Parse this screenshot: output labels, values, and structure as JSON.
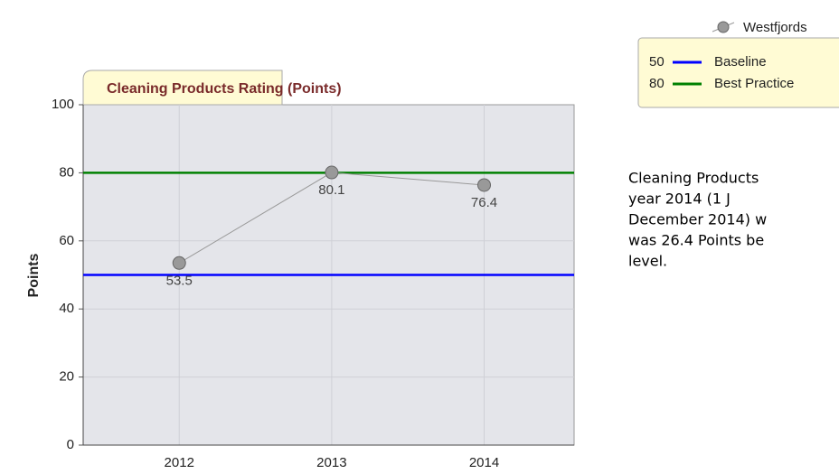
{
  "chart_data": {
    "type": "line",
    "title": "Cleaning Products Rating (Points)",
    "y_label": "Points",
    "categories": [
      "2012",
      "2013",
      "2014"
    ],
    "series": [
      {
        "name": "Westfjords",
        "color": "#999999",
        "values": [
          53.5,
          80.1,
          76.4
        ]
      }
    ],
    "reference_lines": [
      {
        "name": "Baseline",
        "value": 50,
        "color": "#0000ff"
      },
      {
        "name": "Best Practice",
        "value": 80,
        "color": "#008000"
      }
    ],
    "ylim": [
      0,
      100
    ],
    "yticks": [
      0,
      20,
      40,
      60,
      80,
      100
    ],
    "grid": true
  },
  "side_text": [
    "Cleaning Products",
    "year 2014 (1 J",
    "December 2014) w",
    "was 26.4 Points be",
    "level."
  ]
}
